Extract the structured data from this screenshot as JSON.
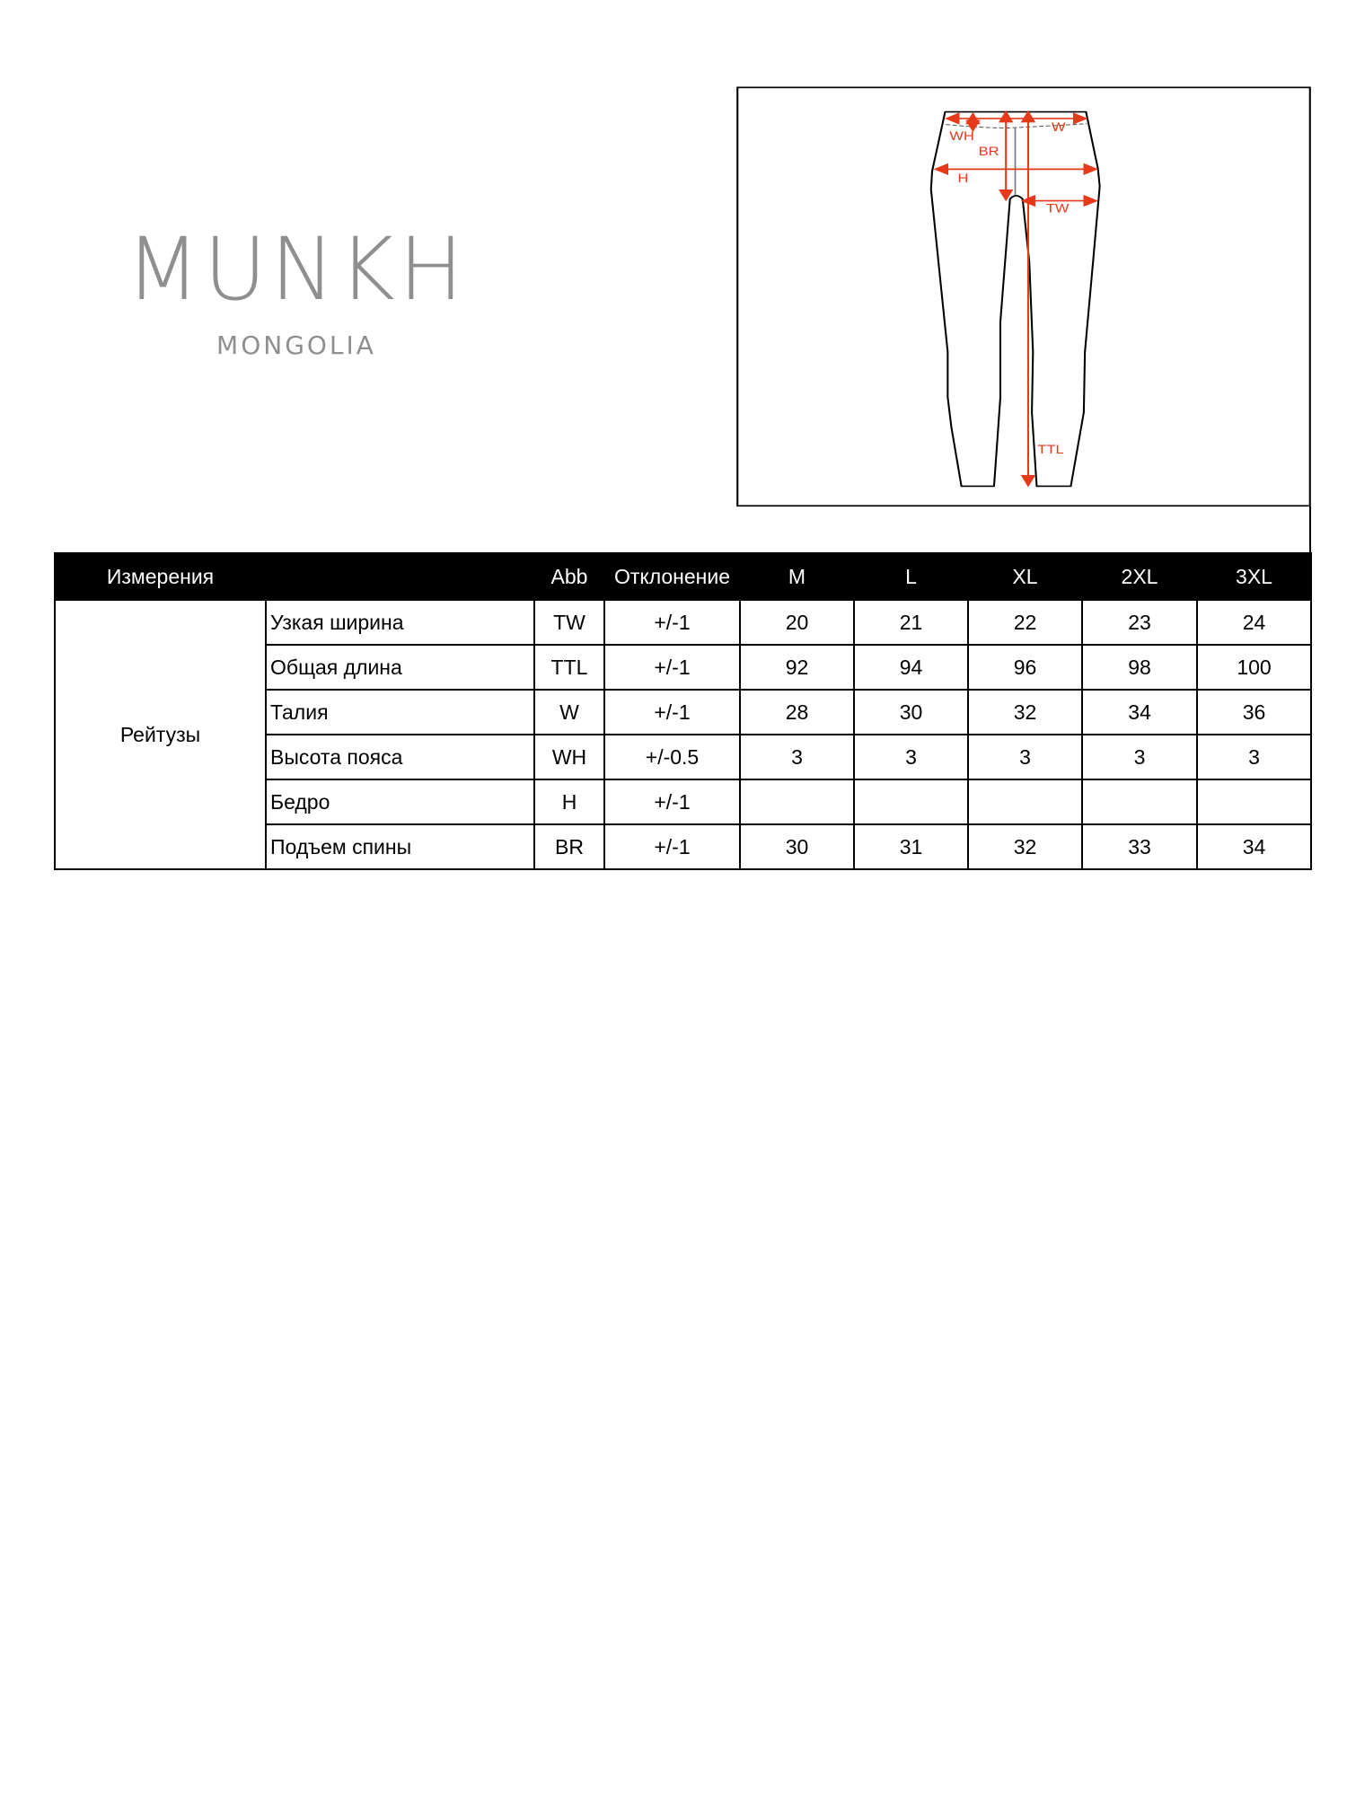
{
  "logo": {
    "brand": "MUNKH",
    "sub": "MONGOLIA"
  },
  "diagram": {
    "labels": {
      "w": "W",
      "wh": "WH",
      "br": "BR",
      "h": "H",
      "tw": "TW",
      "ttl": "TTL"
    },
    "arrow_color": "#e5391a"
  },
  "table": {
    "headers": {
      "measure": "Измерения",
      "abb": "Abb",
      "tolerance": "Отклонение",
      "sizes": [
        "M",
        "L",
        "XL",
        "2XL",
        "3XL"
      ]
    },
    "product": "Рейтузы",
    "rows": [
      {
        "name": "Узкая ширина",
        "abb": "TW",
        "tol": "+/-1",
        "values": [
          "20",
          "21",
          "22",
          "23",
          "24"
        ]
      },
      {
        "name": "Общая длина",
        "abb": "TTL",
        "tol": "+/-1",
        "values": [
          "92",
          "94",
          "96",
          "98",
          "100"
        ]
      },
      {
        "name": "Талия",
        "abb": "W",
        "tol": "+/-1",
        "values": [
          "28",
          "30",
          "32",
          "34",
          "36"
        ]
      },
      {
        "name": "Высота пояса",
        "abb": "WH",
        "tol": "+/-0.5",
        "values": [
          "3",
          "3",
          "3",
          "3",
          "3"
        ]
      },
      {
        "name": "Бедро",
        "abb": "H",
        "tol": "+/-1",
        "values": [
          "",
          "",
          "",
          "",
          ""
        ]
      },
      {
        "name": "Подъем спины",
        "abb": "BR",
        "tol": "+/-1",
        "values": [
          "30",
          "31",
          "32",
          "33",
          "34"
        ]
      }
    ]
  }
}
